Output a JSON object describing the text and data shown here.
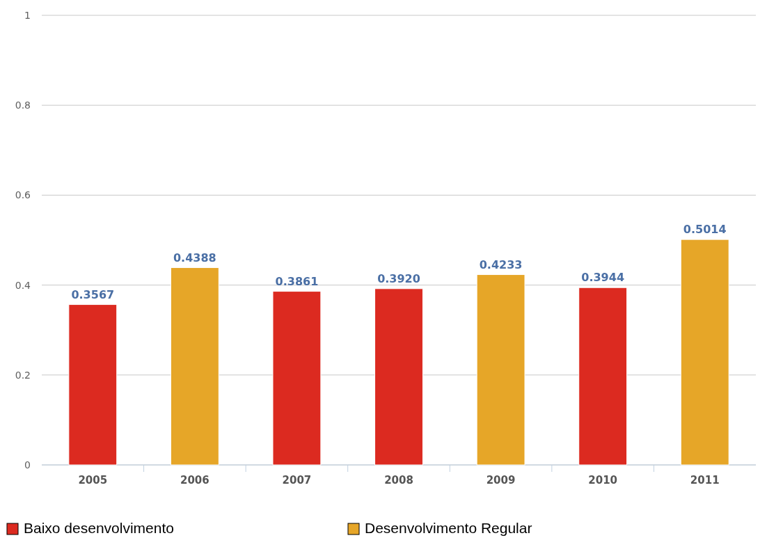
{
  "chart_data": {
    "type": "bar",
    "stacked": true,
    "categories": [
      "2005",
      "2006",
      "2007",
      "2008",
      "2009",
      "2010",
      "2011"
    ],
    "series": [
      {
        "name": "Baixo desenvolvimento",
        "color": "#dc2a20",
        "values": [
          0.3567,
          null,
          0.3861,
          0.392,
          null,
          0.3944,
          null
        ],
        "value_labels": [
          "0.3567",
          null,
          "0.3861",
          "0.3920",
          null,
          "0.3944",
          null
        ]
      },
      {
        "name": "Desenvolvimento Regular",
        "color": "#e6a628",
        "values": [
          null,
          0.4388,
          null,
          null,
          0.4233,
          null,
          0.5014
        ],
        "value_labels": [
          null,
          "0.4388",
          null,
          null,
          "0.4233",
          null,
          "0.5014"
        ]
      }
    ],
    "ylim": [
      0,
      1
    ],
    "yticks": [
      0,
      0.2,
      0.4,
      0.6,
      0.8,
      1
    ],
    "grid": "y",
    "legend": "bottom left"
  }
}
